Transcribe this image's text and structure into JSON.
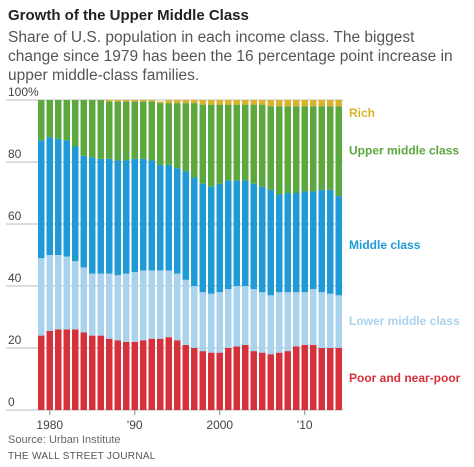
{
  "chart_data": {
    "type": "stacked_bar",
    "title": "Growth of the Upper Middle Class",
    "subtitle": "Share of U.S. population in each income class. The biggest change since 1979 has been the 16 percentage point increase in upper middle-class families.",
    "categories": [
      null,
      "1980",
      null,
      null,
      null,
      null,
      null,
      null,
      null,
      null,
      null,
      "'90",
      null,
      null,
      null,
      null,
      null,
      null,
      null,
      null,
      null,
      "2000",
      null,
      null,
      null,
      null,
      null,
      null,
      null,
      null,
      null,
      "'10",
      null,
      null,
      null,
      null
    ],
    "series": [
      {
        "name": "Poor and near-poor",
        "color": "#d6303a",
        "values": [
          24,
          25.5,
          26,
          26,
          26,
          25,
          24,
          24,
          23,
          22.5,
          22,
          22,
          22.5,
          23,
          23,
          23.5,
          22.5,
          21,
          20,
          19,
          18.5,
          18.5,
          20,
          20.5,
          21,
          19,
          18.5,
          18,
          18.5,
          19,
          20.5,
          21,
          21,
          20,
          20,
          20
        ]
      },
      {
        "name": "Lower middle class",
        "color": "#a9d2ed",
        "values": [
          25,
          24.5,
          24,
          23.5,
          22,
          21,
          20,
          20,
          21,
          21,
          22,
          22.5,
          22.5,
          22,
          22,
          21.5,
          21.5,
          21,
          20,
          19,
          19,
          19.5,
          19,
          19.5,
          19,
          20,
          19.5,
          19,
          19.5,
          19,
          17.5,
          17,
          18,
          18,
          17.5,
          17
        ]
      },
      {
        "name": "Middle class",
        "color": "#1e9ad6",
        "values": [
          38,
          38,
          37.5,
          37.5,
          37,
          36,
          37.5,
          37,
          37,
          37,
          36.5,
          36.5,
          36,
          35.5,
          34,
          34,
          34,
          35,
          35,
          35,
          34.5,
          35,
          35,
          34,
          34,
          34,
          34,
          34,
          31.5,
          32,
          32,
          32.5,
          31.5,
          33,
          33.5,
          32
        ]
      },
      {
        "name": "Upper middle class",
        "color": "#5aa83e",
        "values": [
          13,
          12,
          12.5,
          13,
          15,
          18,
          18.5,
          19,
          18.5,
          19,
          19,
          18.5,
          18.5,
          19,
          20,
          20,
          21,
          22,
          24,
          25.5,
          26.5,
          25.5,
          24.5,
          24.5,
          24.5,
          25.5,
          26.5,
          27,
          28.5,
          28,
          28,
          27.5,
          27.5,
          27,
          27,
          29
        ]
      },
      {
        "name": "Rich",
        "color": "#d9b42a",
        "values": [
          0,
          0,
          0,
          0,
          0,
          0,
          0,
          0,
          0.5,
          0.5,
          0.5,
          0.5,
          0.5,
          0.5,
          0.5,
          1,
          1,
          1,
          1,
          1.5,
          1.5,
          1.5,
          1.5,
          1.5,
          1.5,
          1.5,
          1.5,
          2,
          2,
          2,
          2,
          2,
          2,
          2,
          2,
          2
        ]
      }
    ],
    "ylim": [
      0,
      100
    ],
    "yticks": [
      0,
      20,
      40,
      60,
      80,
      {
        "value": 100,
        "label": "100%"
      }
    ],
    "grid": true,
    "source": "Source: Urban Institute",
    "publisher": "THE WALL STREET JOURNAL"
  }
}
